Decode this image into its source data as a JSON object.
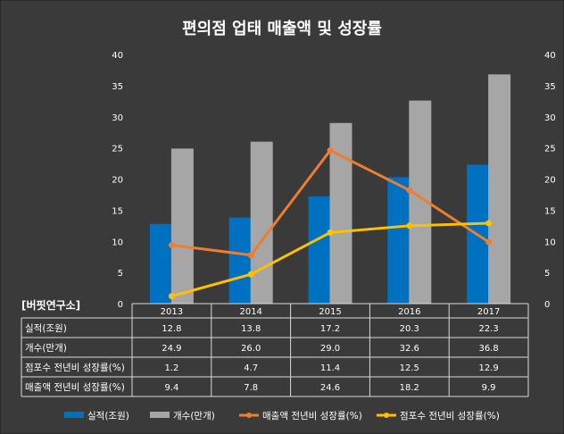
{
  "chart_data": {
    "type": "bar",
    "title": "편의점 업태 매출액 및 성장률",
    "source": "[버핏연구소]",
    "categories": [
      "2013",
      "2014",
      "2015",
      "2016",
      "2017"
    ],
    "series": [
      {
        "name": "실적(조원)",
        "kind": "bar",
        "axis": "left",
        "color": "#0070C0",
        "values": [
          12.8,
          13.8,
          17.2,
          20.3,
          22.3
        ]
      },
      {
        "name": "개수(만개)",
        "kind": "bar",
        "axis": "left",
        "color": "#A6A6A6",
        "values": [
          24.9,
          26.0,
          29.0,
          32.6,
          36.8
        ]
      },
      {
        "name": "매출액 전년비 성장률(%)",
        "kind": "line",
        "axis": "right",
        "color": "#ED7D31",
        "values": [
          9.4,
          7.8,
          24.6,
          18.2,
          9.9
        ]
      },
      {
        "name": "점포수 전년비 성장률(%)",
        "kind": "line",
        "axis": "right",
        "color": "#FFC000",
        "values": [
          1.2,
          4.7,
          11.4,
          12.5,
          12.9
        ]
      }
    ],
    "ylim": [
      0,
      40
    ],
    "y_ticks": [
      "0",
      "5",
      "10",
      "15",
      "20",
      "25",
      "30",
      "35",
      "40"
    ],
    "y2lim": [
      0,
      40
    ],
    "y2_ticks": [
      "0",
      "5",
      "10",
      "15",
      "20",
      "25",
      "30",
      "35",
      "40"
    ],
    "data_table_rows": [
      {
        "label": "실적(조원)",
        "cells": [
          "12.8",
          "13.8",
          "17.2",
          "20.3",
          "22.3"
        ]
      },
      {
        "label": "개수(만개)",
        "cells": [
          "24.9",
          "26.0",
          "29.0",
          "32.6",
          "36.8"
        ]
      },
      {
        "label": "점포수 전년비 성장률(%)",
        "cells": [
          "1.2",
          "4.7",
          "11.4",
          "12.5",
          "12.9"
        ]
      },
      {
        "label": "매출액 전년비 성장률(%)",
        "cells": [
          "9.4",
          "7.8",
          "24.6",
          "18.2",
          "9.9"
        ]
      }
    ],
    "legend_position": "bottom",
    "background": "#3A3A3A",
    "grid": false
  }
}
